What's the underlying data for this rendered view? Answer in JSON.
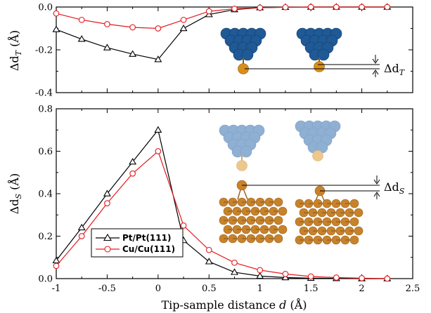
{
  "chart_data": [
    {
      "id": "top",
      "type": "line",
      "ylabel_main": "Δd",
      "ylabel_sub": "T",
      "ylabel_unit": "(Å)",
      "xlim": [
        -1,
        2.5
      ],
      "ylim": [
        -0.4,
        0
      ],
      "yticks": [
        0,
        -0.2,
        -0.4
      ],
      "ytick_labels": [
        "0.0",
        "-0.2",
        "-0.4"
      ],
      "xticks": [
        -1,
        -0.5,
        0,
        0.5,
        1,
        1.5,
        2,
        2.5
      ],
      "series": [
        {
          "key": "pt",
          "color": "#000000",
          "marker": "triangle",
          "x": [
            -1,
            -0.75,
            -0.5,
            -0.25,
            0,
            0.25,
            0.5,
            0.75,
            1,
            1.25,
            1.5,
            1.75,
            2,
            2.25
          ],
          "y": [
            -0.105,
            -0.15,
            -0.19,
            -0.22,
            -0.245,
            -0.1,
            -0.035,
            -0.012,
            -0.003,
            -0.001,
            0,
            0,
            0,
            0
          ]
        },
        {
          "key": "cu",
          "color": "#e31a1c",
          "marker": "circle",
          "x": [
            -1,
            -0.75,
            -0.5,
            -0.25,
            0,
            0.25,
            0.5,
            0.75,
            1,
            1.25,
            1.5,
            1.75,
            2,
            2.25
          ],
          "y": [
            -0.03,
            -0.06,
            -0.08,
            -0.095,
            -0.1,
            -0.06,
            -0.02,
            -0.008,
            -0.003,
            -0.001,
            0,
            0,
            0,
            0
          ]
        }
      ],
      "annotation": {
        "main": "Δd",
        "sub": "T"
      }
    },
    {
      "id": "bottom",
      "type": "line",
      "ylabel_main": "Δd",
      "ylabel_sub": "S",
      "ylabel_unit": "(Å)",
      "xlabel_pre": "Tip-sample distance ",
      "xlabel_var": "d",
      "xlabel_post": " (Å)",
      "xlim": [
        -1,
        2.5
      ],
      "ylim": [
        0,
        0.8
      ],
      "yticks": [
        0,
        0.2,
        0.4,
        0.6,
        0.8
      ],
      "ytick_labels": [
        "0.0",
        "0.2",
        "0.4",
        "0.6",
        "0.8"
      ],
      "xticks": [
        -1,
        -0.5,
        0,
        0.5,
        1,
        1.5,
        2,
        2.5
      ],
      "xtick_labels": [
        "-1",
        "-0.5",
        "0",
        "0.5",
        "1",
        "1.5",
        "2",
        "2.5"
      ],
      "series": [
        {
          "key": "pt",
          "name": "Pt/Pt(111)",
          "color": "#000000",
          "marker": "triangle",
          "x": [
            -1,
            -0.75,
            -0.5,
            -0.25,
            0,
            0.25,
            0.5,
            0.75,
            1,
            1.25,
            1.5,
            1.75,
            2,
            2.25
          ],
          "y": [
            0.085,
            0.24,
            0.4,
            0.55,
            0.7,
            0.18,
            0.08,
            0.03,
            0.012,
            0.005,
            0.002,
            0.001,
            0,
            0
          ]
        },
        {
          "key": "cu",
          "name": "Cu/Cu(111)",
          "color": "#e31a1c",
          "marker": "circle",
          "x": [
            -1,
            -0.75,
            -0.5,
            -0.25,
            0,
            0.25,
            0.5,
            0.75,
            1,
            1.25,
            1.5,
            1.75,
            2,
            2.25
          ],
          "y": [
            0.06,
            0.2,
            0.355,
            0.495,
            0.6,
            0.25,
            0.135,
            0.075,
            0.04,
            0.022,
            0.01,
            0.005,
            0.002,
            0
          ]
        }
      ],
      "legend_position": "bottom-left",
      "annotation": {
        "main": "Δd",
        "sub": "S"
      }
    }
  ],
  "colors": {
    "pt_atom": "#1f5a96",
    "pt_atom_faded": "#8fb0d2",
    "au_atom": "#d88e1a",
    "au_atom_faded": "#eec88a",
    "cu_atom": "#c8822a",
    "cu_bond": "#9a6420"
  }
}
